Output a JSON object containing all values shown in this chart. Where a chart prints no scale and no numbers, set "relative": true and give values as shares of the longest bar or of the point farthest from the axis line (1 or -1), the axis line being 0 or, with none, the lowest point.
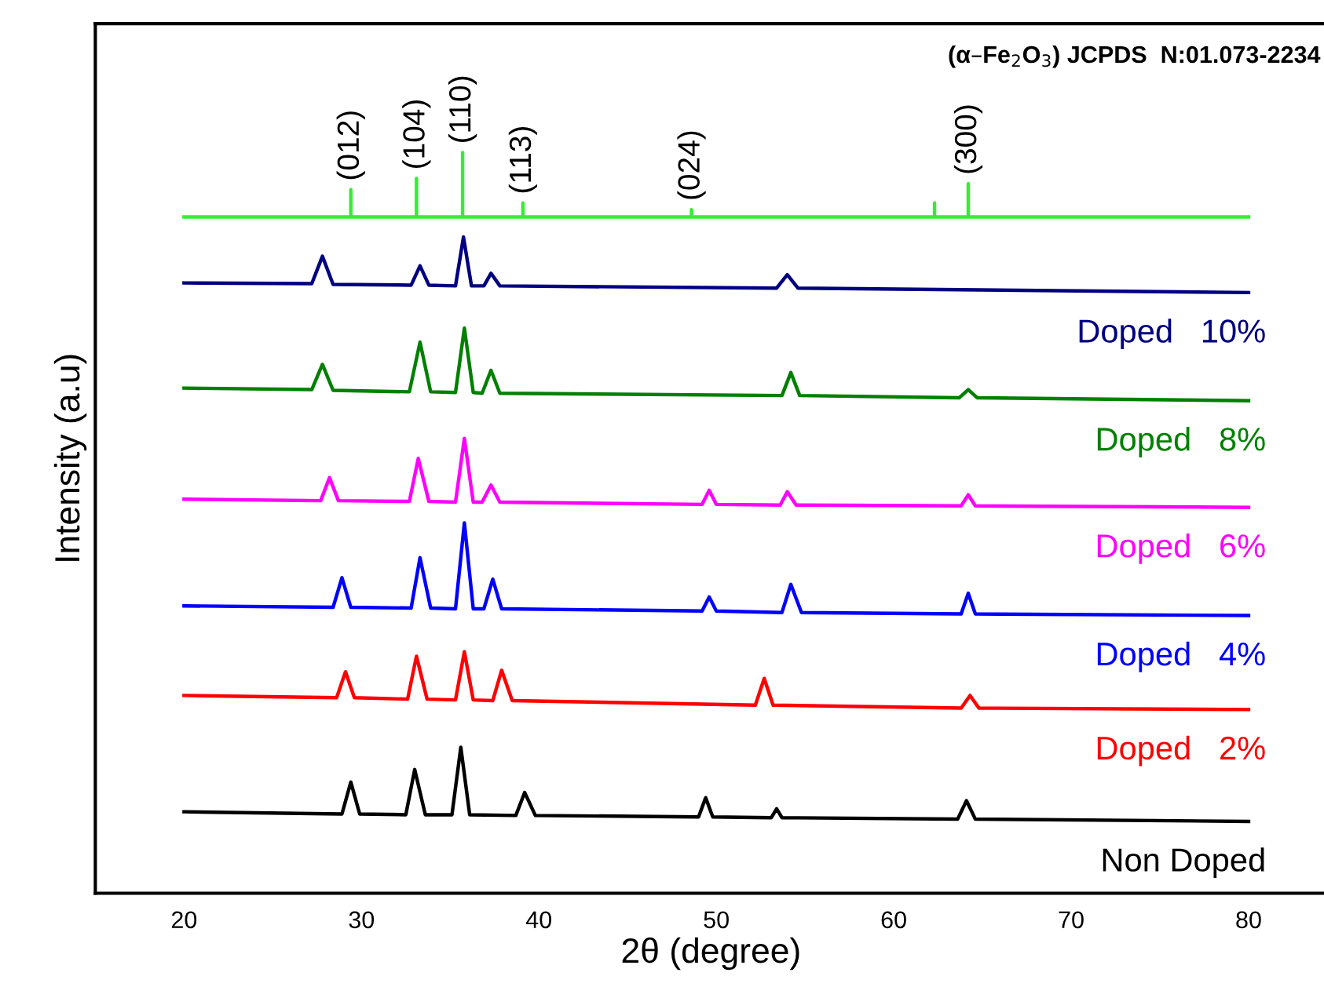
{
  "chart_data": {
    "type": "line",
    "relative": true,
    "xlabel": "2θ (degree)",
    "ylabel": "Intensity (a.u)",
    "xlim": [
      15,
      84.4
    ],
    "xticks": [
      20,
      30,
      40,
      50,
      60,
      70,
      80
    ],
    "tick_labels": "x",
    "grid": false,
    "legend": false,
    "marker": "none",
    "line_style": "solid",
    "annotations": [
      "(α–Fe$_{2}$O$_{3}$) JCPDS  N:01.073-2234",
      {
        "text": "(012)",
        "x": 29.4,
        "y": 0.95
      },
      {
        "text": "(104)",
        "x": 33.1,
        "y": 0.965
      },
      {
        "text": "(110)",
        "x": 35.7,
        "y": 1.0
      },
      {
        "text": "(113)",
        "x": 39.1,
        "y": 0.932
      },
      {
        "text": "(024)",
        "x": 48.6,
        "y": 0.923
      },
      {
        "text": "(300)",
        "x": 64.2,
        "y": 0.958
      }
    ],
    "series": [
      {
        "color": "#33ee33",
        "x": [
          20,
          29.4,
          29.4,
          29.4,
          33.1,
          33.1,
          33.1,
          35.7,
          35.7,
          35.7,
          39.1,
          39.1,
          39.1,
          48.6,
          48.6,
          48.6,
          62.3,
          62.3,
          62.3,
          64.2,
          64.2,
          64.2,
          80
        ],
        "values": [
          0.913,
          0.913,
          0.95,
          0.913,
          0.913,
          0.965,
          0.913,
          0.913,
          1.0,
          0.913,
          0.913,
          0.932,
          0.913,
          0.913,
          0.923,
          0.913,
          0.913,
          0.932,
          0.913,
          0.913,
          0.958,
          0.913,
          0.913
        ]
      },
      {
        "name": "Doped   10%",
        "color": "#000080",
        "x": [
          20,
          27.2,
          27.8,
          28.4,
          32.8,
          33.3,
          33.8,
          35.3,
          35.75,
          36.2,
          36.9,
          37.3,
          37.8,
          53.4,
          54.0,
          54.6,
          80
        ],
        "values": [
          0.824,
          0.823,
          0.86,
          0.822,
          0.821,
          0.847,
          0.821,
          0.82,
          0.886,
          0.82,
          0.82,
          0.837,
          0.82,
          0.817,
          0.835,
          0.817,
          0.811
        ]
      },
      {
        "name": "Doped   8%",
        "color": "#008000",
        "x": [
          20,
          27.2,
          27.8,
          28.4,
          32.7,
          33.3,
          33.9,
          35.3,
          35.8,
          36.3,
          36.8,
          37.3,
          37.8,
          53.7,
          54.2,
          54.7,
          63.7,
          64.2,
          64.7,
          80
        ],
        "values": [
          0.682,
          0.68,
          0.714,
          0.679,
          0.677,
          0.744,
          0.677,
          0.676,
          0.763,
          0.676,
          0.675,
          0.706,
          0.675,
          0.672,
          0.703,
          0.672,
          0.669,
          0.68,
          0.669,
          0.665
        ]
      },
      {
        "name": "Doped   6%",
        "color": "#ff00ff",
        "x": [
          20,
          27.7,
          28.2,
          28.7,
          32.7,
          33.2,
          33.8,
          35.3,
          35.8,
          36.3,
          36.8,
          37.3,
          37.8,
          49.2,
          49.6,
          50.0,
          53.6,
          54.0,
          54.5,
          63.8,
          64.2,
          64.6,
          80
        ],
        "values": [
          0.532,
          0.53,
          0.561,
          0.53,
          0.529,
          0.587,
          0.529,
          0.528,
          0.614,
          0.528,
          0.528,
          0.551,
          0.528,
          0.525,
          0.544,
          0.525,
          0.524,
          0.542,
          0.524,
          0.523,
          0.538,
          0.523,
          0.521
        ]
      },
      {
        "name": "Doped   4%",
        "color": "#0000ff",
        "x": [
          20,
          28.4,
          28.9,
          29.4,
          32.8,
          33.3,
          33.9,
          35.3,
          35.8,
          36.3,
          36.9,
          37.4,
          37.9,
          49.2,
          49.6,
          50.0,
          53.7,
          54.2,
          54.8,
          63.8,
          64.2,
          64.6,
          80
        ],
        "values": [
          0.388,
          0.386,
          0.426,
          0.386,
          0.385,
          0.453,
          0.385,
          0.384,
          0.5,
          0.384,
          0.384,
          0.424,
          0.384,
          0.381,
          0.4,
          0.381,
          0.379,
          0.417,
          0.379,
          0.377,
          0.405,
          0.377,
          0.375
        ]
      },
      {
        "name": "Doped   2%",
        "color": "#ff0000",
        "x": [
          20,
          28.6,
          29.1,
          29.6,
          32.6,
          33.1,
          33.7,
          35.3,
          35.8,
          36.3,
          37.4,
          37.9,
          38.5,
          52.2,
          52.7,
          53.2,
          63.8,
          64.3,
          64.8,
          80
        ],
        "values": [
          0.267,
          0.264,
          0.299,
          0.264,
          0.262,
          0.32,
          0.262,
          0.261,
          0.326,
          0.261,
          0.26,
          0.301,
          0.26,
          0.254,
          0.29,
          0.254,
          0.25,
          0.267,
          0.25,
          0.248
        ]
      },
      {
        "name": "Non Doped",
        "color": "#000000",
        "x": [
          20,
          28.9,
          29.4,
          29.9,
          32.5,
          33.0,
          33.6,
          35.1,
          35.6,
          36.1,
          38.7,
          39.2,
          39.8,
          49.0,
          49.4,
          49.8,
          53.1,
          53.4,
          53.7,
          63.6,
          64.1,
          64.6,
          80
        ],
        "values": [
          0.11,
          0.107,
          0.15,
          0.107,
          0.106,
          0.167,
          0.106,
          0.106,
          0.197,
          0.106,
          0.105,
          0.136,
          0.105,
          0.103,
          0.129,
          0.103,
          0.102,
          0.114,
          0.102,
          0.1,
          0.125,
          0.1,
          0.097
        ]
      }
    ]
  }
}
